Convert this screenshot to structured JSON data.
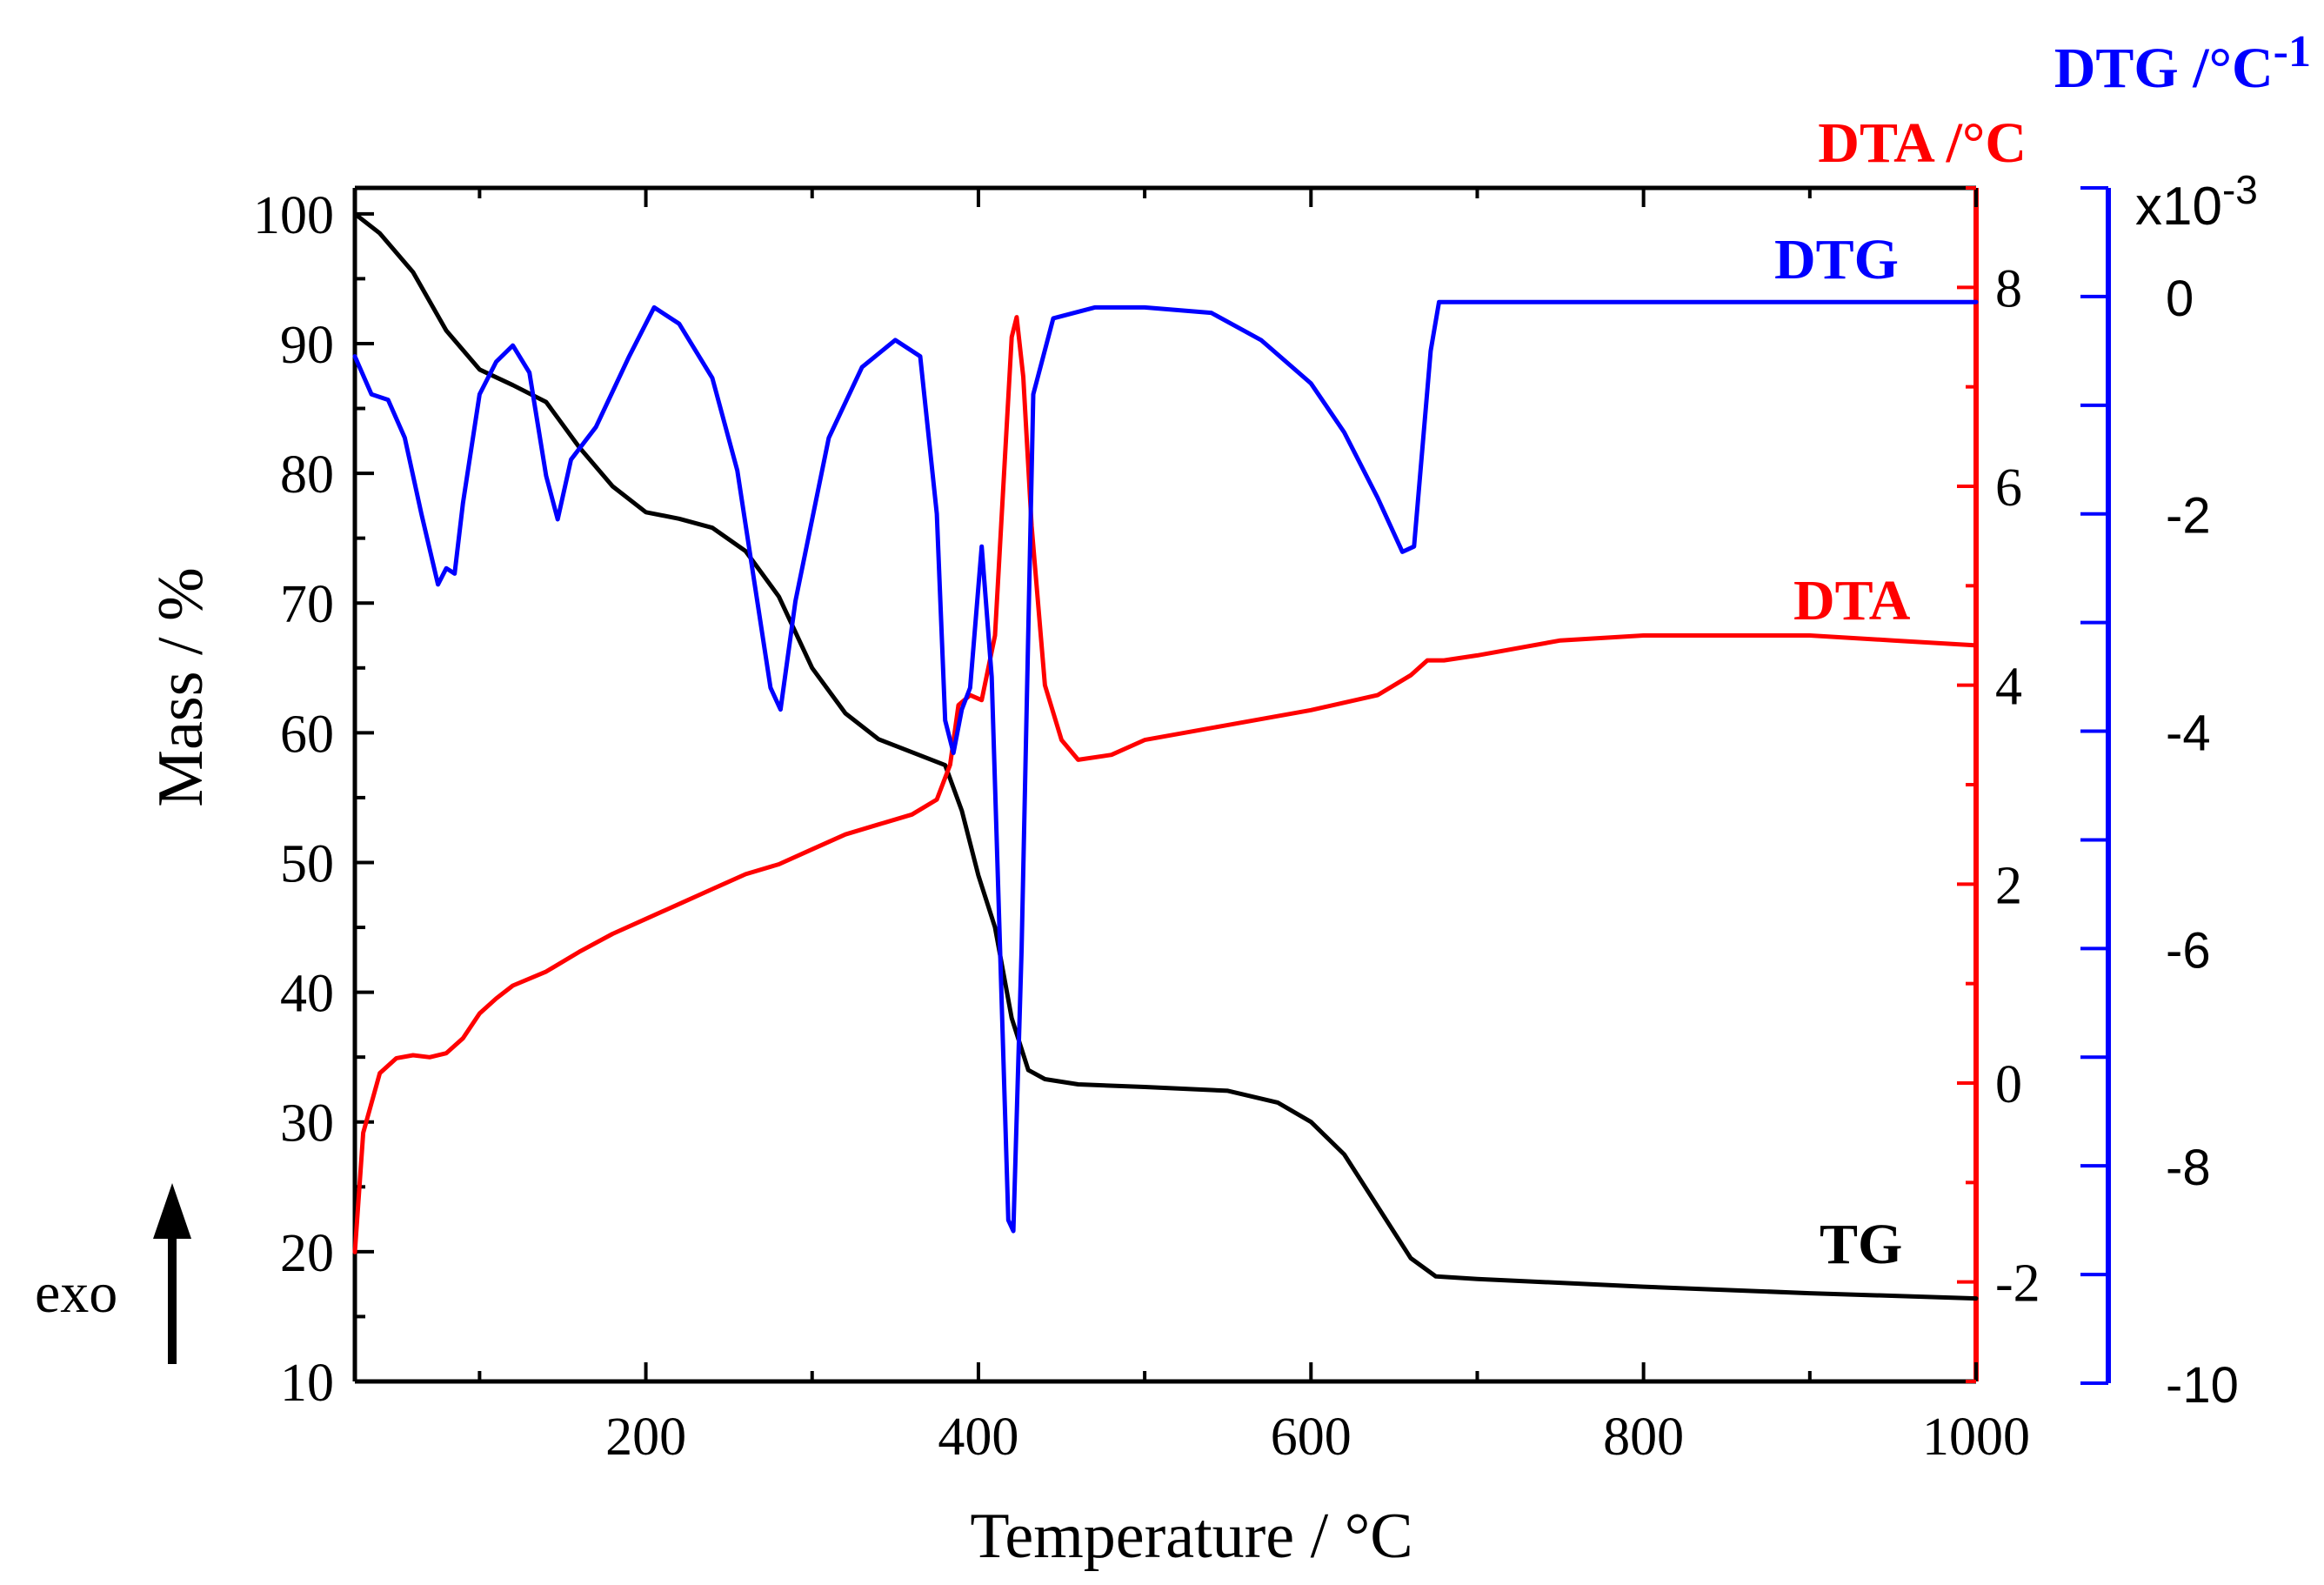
{
  "chart_data": {
    "type": "line",
    "xlabel": "Temperature / °C",
    "xlim": [
      25,
      1000
    ],
    "xticks": [
      200,
      400,
      600,
      800,
      1000
    ],
    "left_axis": {
      "label": "Mass / %",
      "ylim": [
        10,
        102
      ],
      "ticks": [
        10,
        20,
        30,
        40,
        50,
        60,
        70,
        80,
        90,
        100
      ]
    },
    "dta_axis": {
      "label": "DTA /°C",
      "ylim": [
        -3,
        9
      ],
      "ticks": [
        -2,
        0,
        2,
        4,
        6,
        8
      ]
    },
    "dtg_axis": {
      "label_main": "DTG /°C",
      "label_sup": "-1",
      "multiplier_main": "x10",
      "multiplier_sup": "-3",
      "ylim": [
        -10,
        1
      ],
      "ticks": [
        -10,
        -8,
        -6,
        -4,
        -2,
        0
      ]
    },
    "annotations": {
      "tg": "TG",
      "dta": "DTA",
      "dtg": "DTG",
      "exo": "exo"
    },
    "colors": {
      "tg": "#000000",
      "dta": "#ff0000",
      "dtg": "#0000ff",
      "axis": "#000000"
    },
    "series": [
      {
        "name": "TG",
        "axis": "mass",
        "x": [
          25,
          40,
          60,
          80,
          100,
          120,
          140,
          160,
          180,
          200,
          220,
          240,
          260,
          280,
          300,
          320,
          340,
          360,
          380,
          390,
          400,
          410,
          420,
          430,
          440,
          460,
          500,
          550,
          580,
          600,
          620,
          640,
          660,
          675,
          700,
          800,
          900,
          1000
        ],
        "y": [
          100,
          98.5,
          95.5,
          91,
          88,
          86.8,
          85.5,
          82,
          79,
          77,
          76.5,
          75.8,
          74,
          70.5,
          65,
          61.5,
          59.5,
          58.5,
          57.5,
          54,
          49,
          45,
          38,
          34,
          33.3,
          32.9,
          32.7,
          32.4,
          31.5,
          30,
          27.5,
          23.5,
          19.5,
          18.1,
          17.9,
          17.3,
          16.8,
          16.4
        ]
      },
      {
        "name": "DTA",
        "axis": "dta",
        "x": [
          25,
          30,
          40,
          50,
          60,
          70,
          80,
          90,
          100,
          110,
          120,
          140,
          160,
          180,
          200,
          220,
          240,
          260,
          280,
          300,
          320,
          340,
          360,
          375,
          383,
          388,
          395,
          402,
          410,
          416,
          420,
          423,
          427,
          432,
          440,
          450,
          460,
          480,
          500,
          550,
          600,
          640,
          660,
          670,
          680,
          700,
          750,
          800,
          850,
          900,
          950,
          1000
        ],
        "y": [
          -1.7,
          -0.5,
          0.1,
          0.25,
          0.28,
          0.26,
          0.3,
          0.45,
          0.7,
          0.85,
          0.98,
          1.12,
          1.32,
          1.5,
          1.65,
          1.8,
          1.95,
          2.1,
          2.2,
          2.35,
          2.5,
          2.6,
          2.7,
          2.85,
          3.2,
          3.8,
          3.9,
          3.85,
          4.5,
          6.3,
          7.5,
          7.7,
          7.1,
          5.6,
          4.0,
          3.45,
          3.25,
          3.3,
          3.45,
          3.6,
          3.75,
          3.9,
          4.1,
          4.25,
          4.25,
          4.3,
          4.45,
          4.5,
          4.5,
          4.5,
          4.45,
          4.4
        ]
      },
      {
        "name": "DTG",
        "axis": "dtg",
        "x": [
          25,
          35,
          45,
          55,
          65,
          75,
          80,
          85,
          90,
          100,
          110,
          120,
          130,
          140,
          147,
          155,
          170,
          190,
          205,
          220,
          240,
          255,
          265,
          275,
          281,
          290,
          310,
          330,
          350,
          365,
          375,
          380,
          385,
          390,
          395,
          402,
          408,
          413,
          418,
          421,
          426,
          433,
          445,
          470,
          500,
          540,
          570,
          600,
          620,
          640,
          655,
          662,
          672,
          677,
          700,
          800,
          900,
          1000
        ],
        "y": [
          -0.55,
          -0.9,
          -0.95,
          -1.3,
          -2.0,
          -2.65,
          -2.5,
          -2.55,
          -1.9,
          -0.9,
          -0.6,
          -0.45,
          -0.7,
          -1.65,
          -2.05,
          -1.5,
          -1.2,
          -0.55,
          -0.1,
          -0.25,
          -0.75,
          -1.6,
          -2.6,
          -3.6,
          -3.8,
          -2.8,
          -1.3,
          -0.65,
          -0.4,
          -0.55,
          -2.0,
          -3.9,
          -4.2,
          -3.8,
          -3.6,
          -2.3,
          -3.5,
          -6.0,
          -8.5,
          -8.6,
          -6.0,
          -0.9,
          -0.2,
          -0.1,
          -0.1,
          -0.15,
          -0.4,
          -0.8,
          -1.25,
          -1.85,
          -2.35,
          -2.3,
          -0.5,
          -0.05,
          -0.05,
          -0.05,
          -0.05,
          -0.05
        ]
      }
    ]
  }
}
